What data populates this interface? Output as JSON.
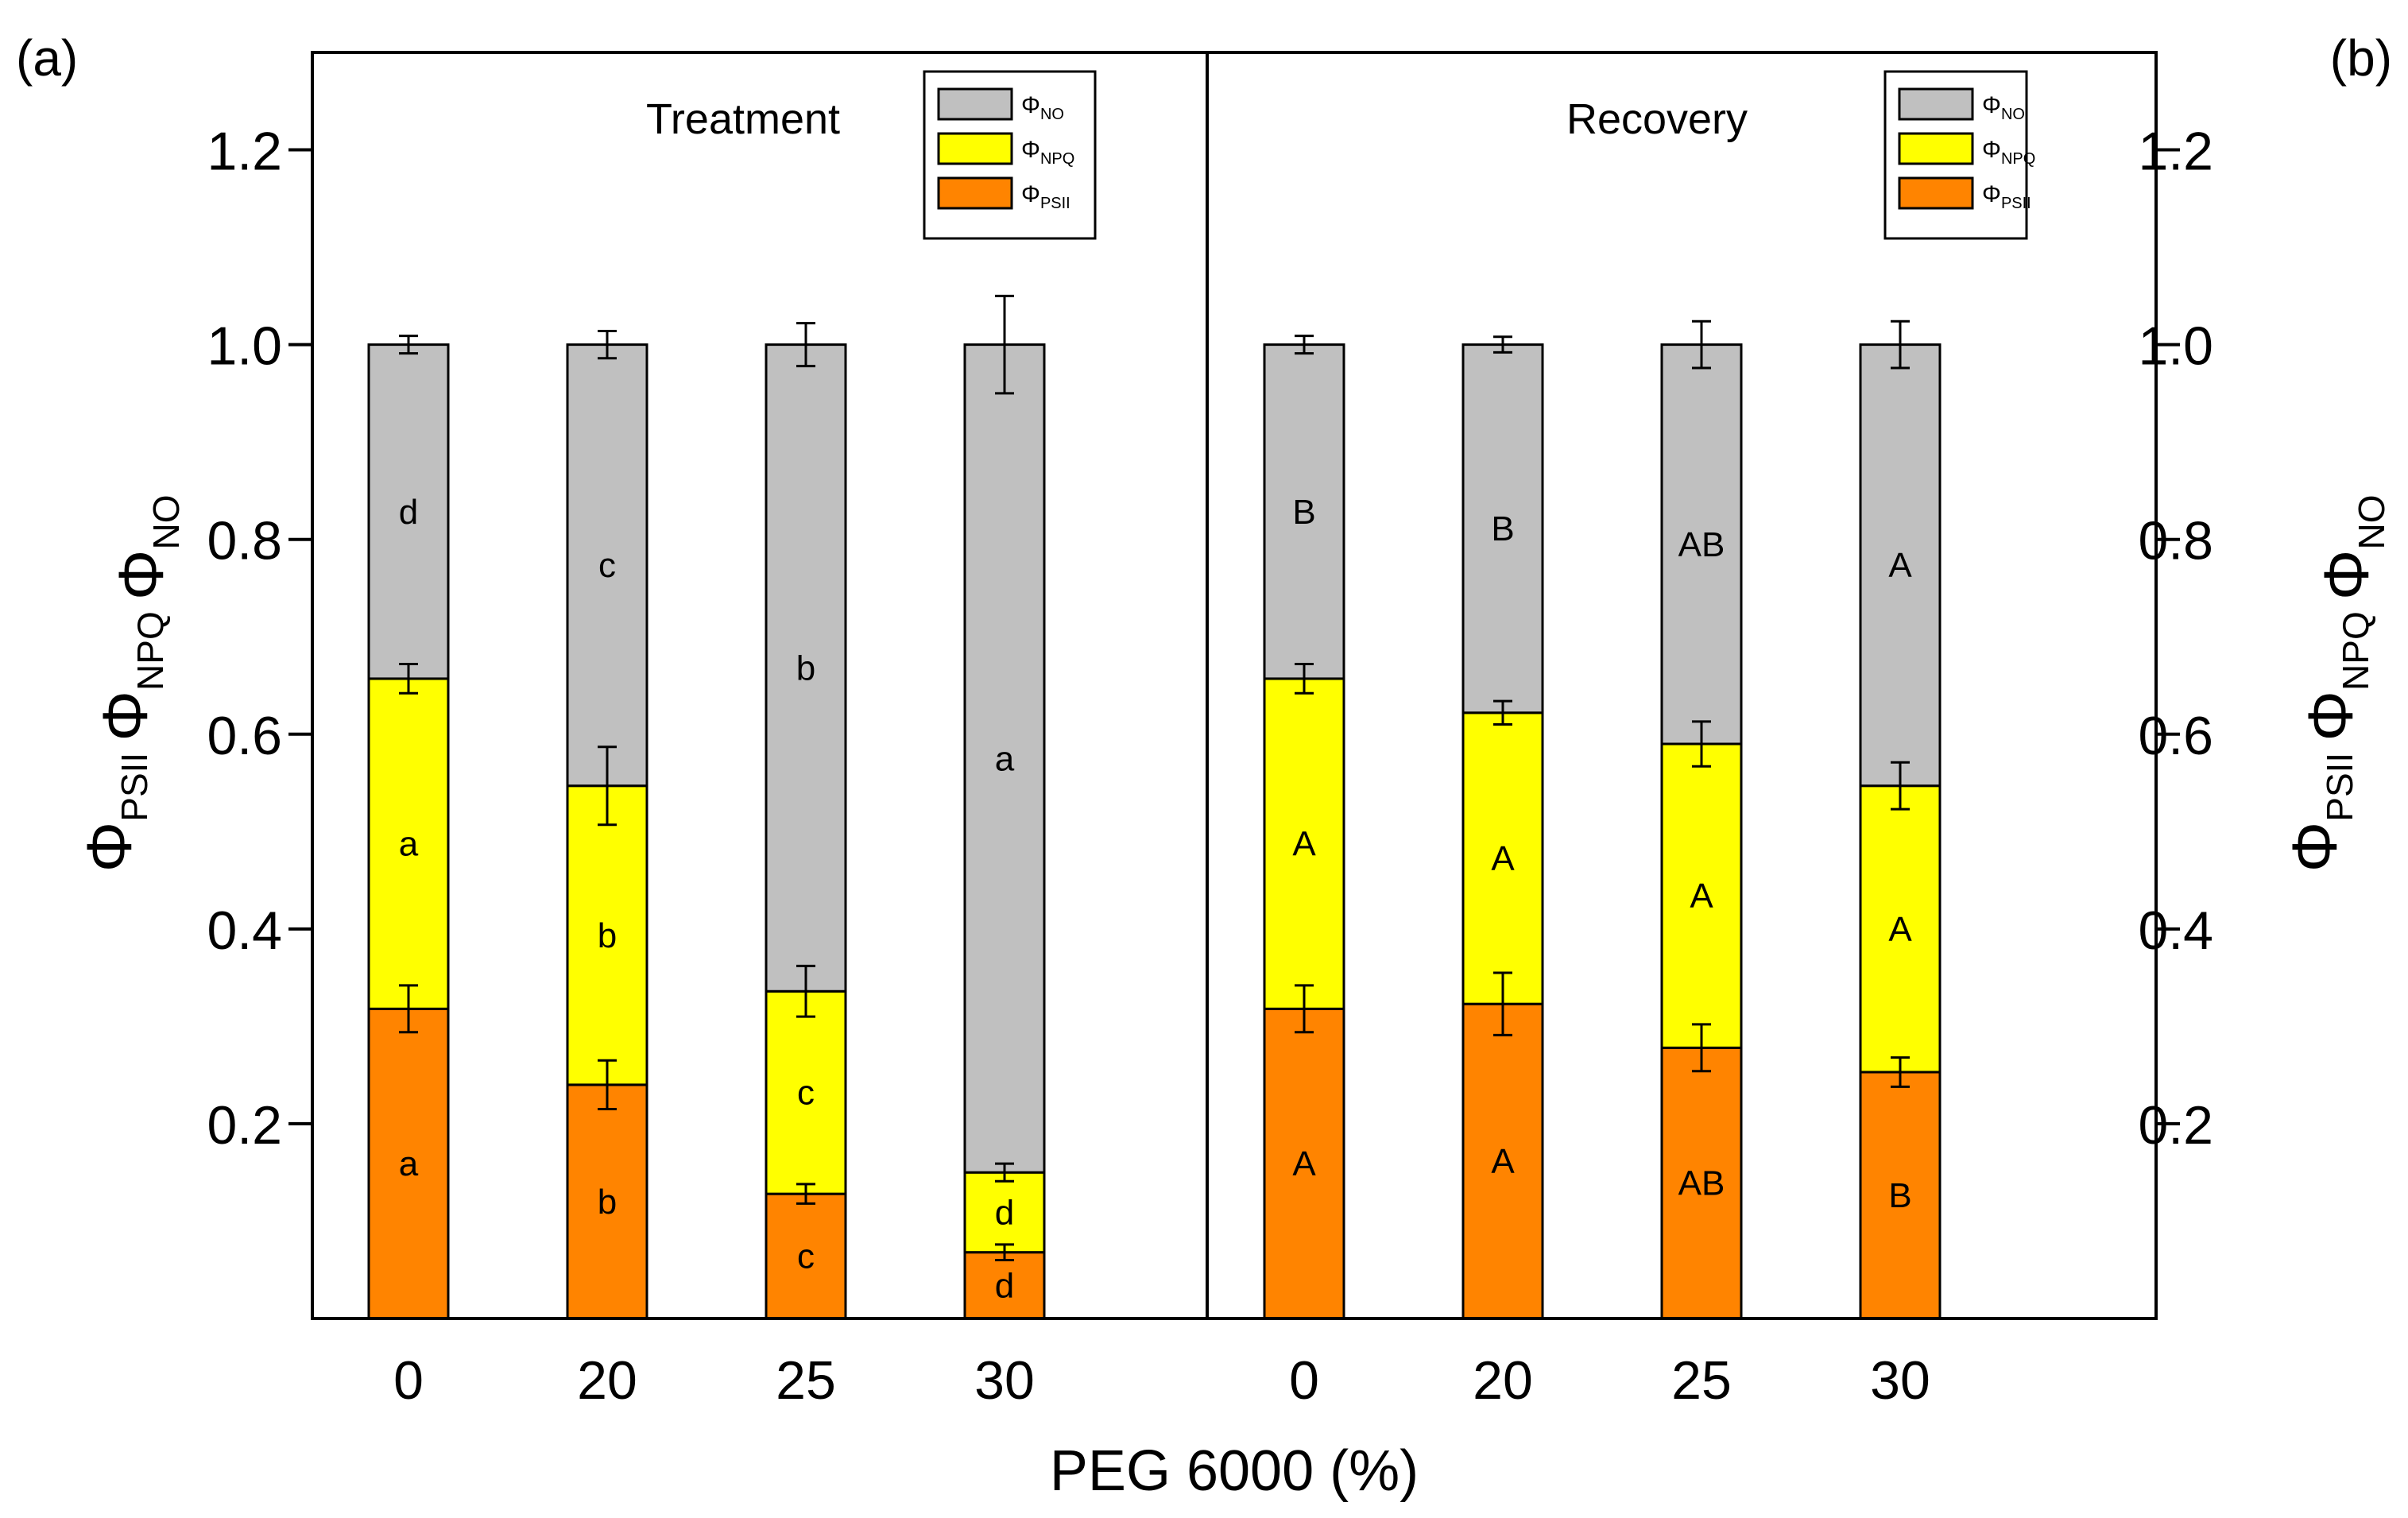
{
  "chart_data": {
    "type": "bar",
    "stacked": true,
    "x_ticks": [
      "0",
      "20",
      "25",
      "30"
    ],
    "xlabel": "PEG 6000 (%)",
    "ylabel_parts": [
      {
        "base": "Φ",
        "sub": "PSII"
      },
      {
        "base": "Φ",
        "sub": "NPQ"
      },
      {
        "base": "Φ",
        "sub": "NO"
      }
    ],
    "ylim": [
      0,
      1.3
    ],
    "y_ticks": [
      0.2,
      0.4,
      0.6,
      0.8,
      1.0,
      1.2
    ],
    "y_tick_labels": [
      "0.2",
      "0.4",
      "0.6",
      "0.8",
      "1.0",
      "1.2"
    ],
    "panel_labels": {
      "left": "(a)",
      "right": "(b)"
    },
    "colors": {
      "PSII": "#ff8400",
      "NPQ": "#ffff00",
      "NO": "#c0c0c0"
    },
    "legend": [
      {
        "key": "NO",
        "base": "Φ",
        "sub": "NO"
      },
      {
        "key": "NPQ",
        "base": "Φ",
        "sub": "NPQ"
      },
      {
        "key": "PSII",
        "base": "Φ",
        "sub": "PSII"
      }
    ],
    "panels": [
      {
        "title": "Treatment",
        "categories": [
          "0",
          "20",
          "25",
          "30"
        ],
        "series": [
          {
            "name": "ΦPSII",
            "key": "PSII",
            "values": [
              0.318,
              0.24,
              0.128,
              0.068
            ],
            "errors": [
              0.024,
              0.025,
              0.01,
              0.008
            ],
            "letters": [
              "a",
              "b",
              "c",
              "d"
            ]
          },
          {
            "name": "ΦNPQ",
            "key": "NPQ",
            "values": [
              0.339,
              0.307,
              0.208,
              0.082
            ],
            "errors": [
              0.015,
              0.04,
              0.026,
              0.009
            ],
            "letters": [
              "a",
              "b",
              "c",
              "d"
            ]
          },
          {
            "name": "ΦNO",
            "key": "NO",
            "values": [
              0.343,
              0.453,
              0.664,
              0.85
            ],
            "errors": [
              0.009,
              0.014,
              0.022,
              0.05
            ],
            "letters": [
              "d",
              "c",
              "b",
              "a"
            ]
          }
        ]
      },
      {
        "title": "Recovery",
        "categories": [
          "0",
          "20",
          "25",
          "30"
        ],
        "series": [
          {
            "name": "ΦPSII",
            "key": "PSII",
            "values": [
              0.318,
              0.323,
              0.278,
              0.253
            ],
            "errors": [
              0.024,
              0.032,
              0.024,
              0.015
            ],
            "letters": [
              "A",
              "A",
              "AB",
              "B"
            ]
          },
          {
            "name": "ΦNPQ",
            "key": "NPQ",
            "values": [
              0.339,
              0.299,
              0.312,
              0.294
            ],
            "errors": [
              0.015,
              0.012,
              0.023,
              0.024
            ],
            "letters": [
              "A",
              "A",
              "A",
              "A"
            ]
          },
          {
            "name": "ΦNO",
            "key": "NO",
            "values": [
              0.343,
              0.378,
              0.41,
              0.453
            ],
            "errors": [
              0.009,
              0.008,
              0.024,
              0.024
            ],
            "letters": [
              "B",
              "B",
              "AB",
              "A"
            ]
          }
        ]
      }
    ]
  }
}
